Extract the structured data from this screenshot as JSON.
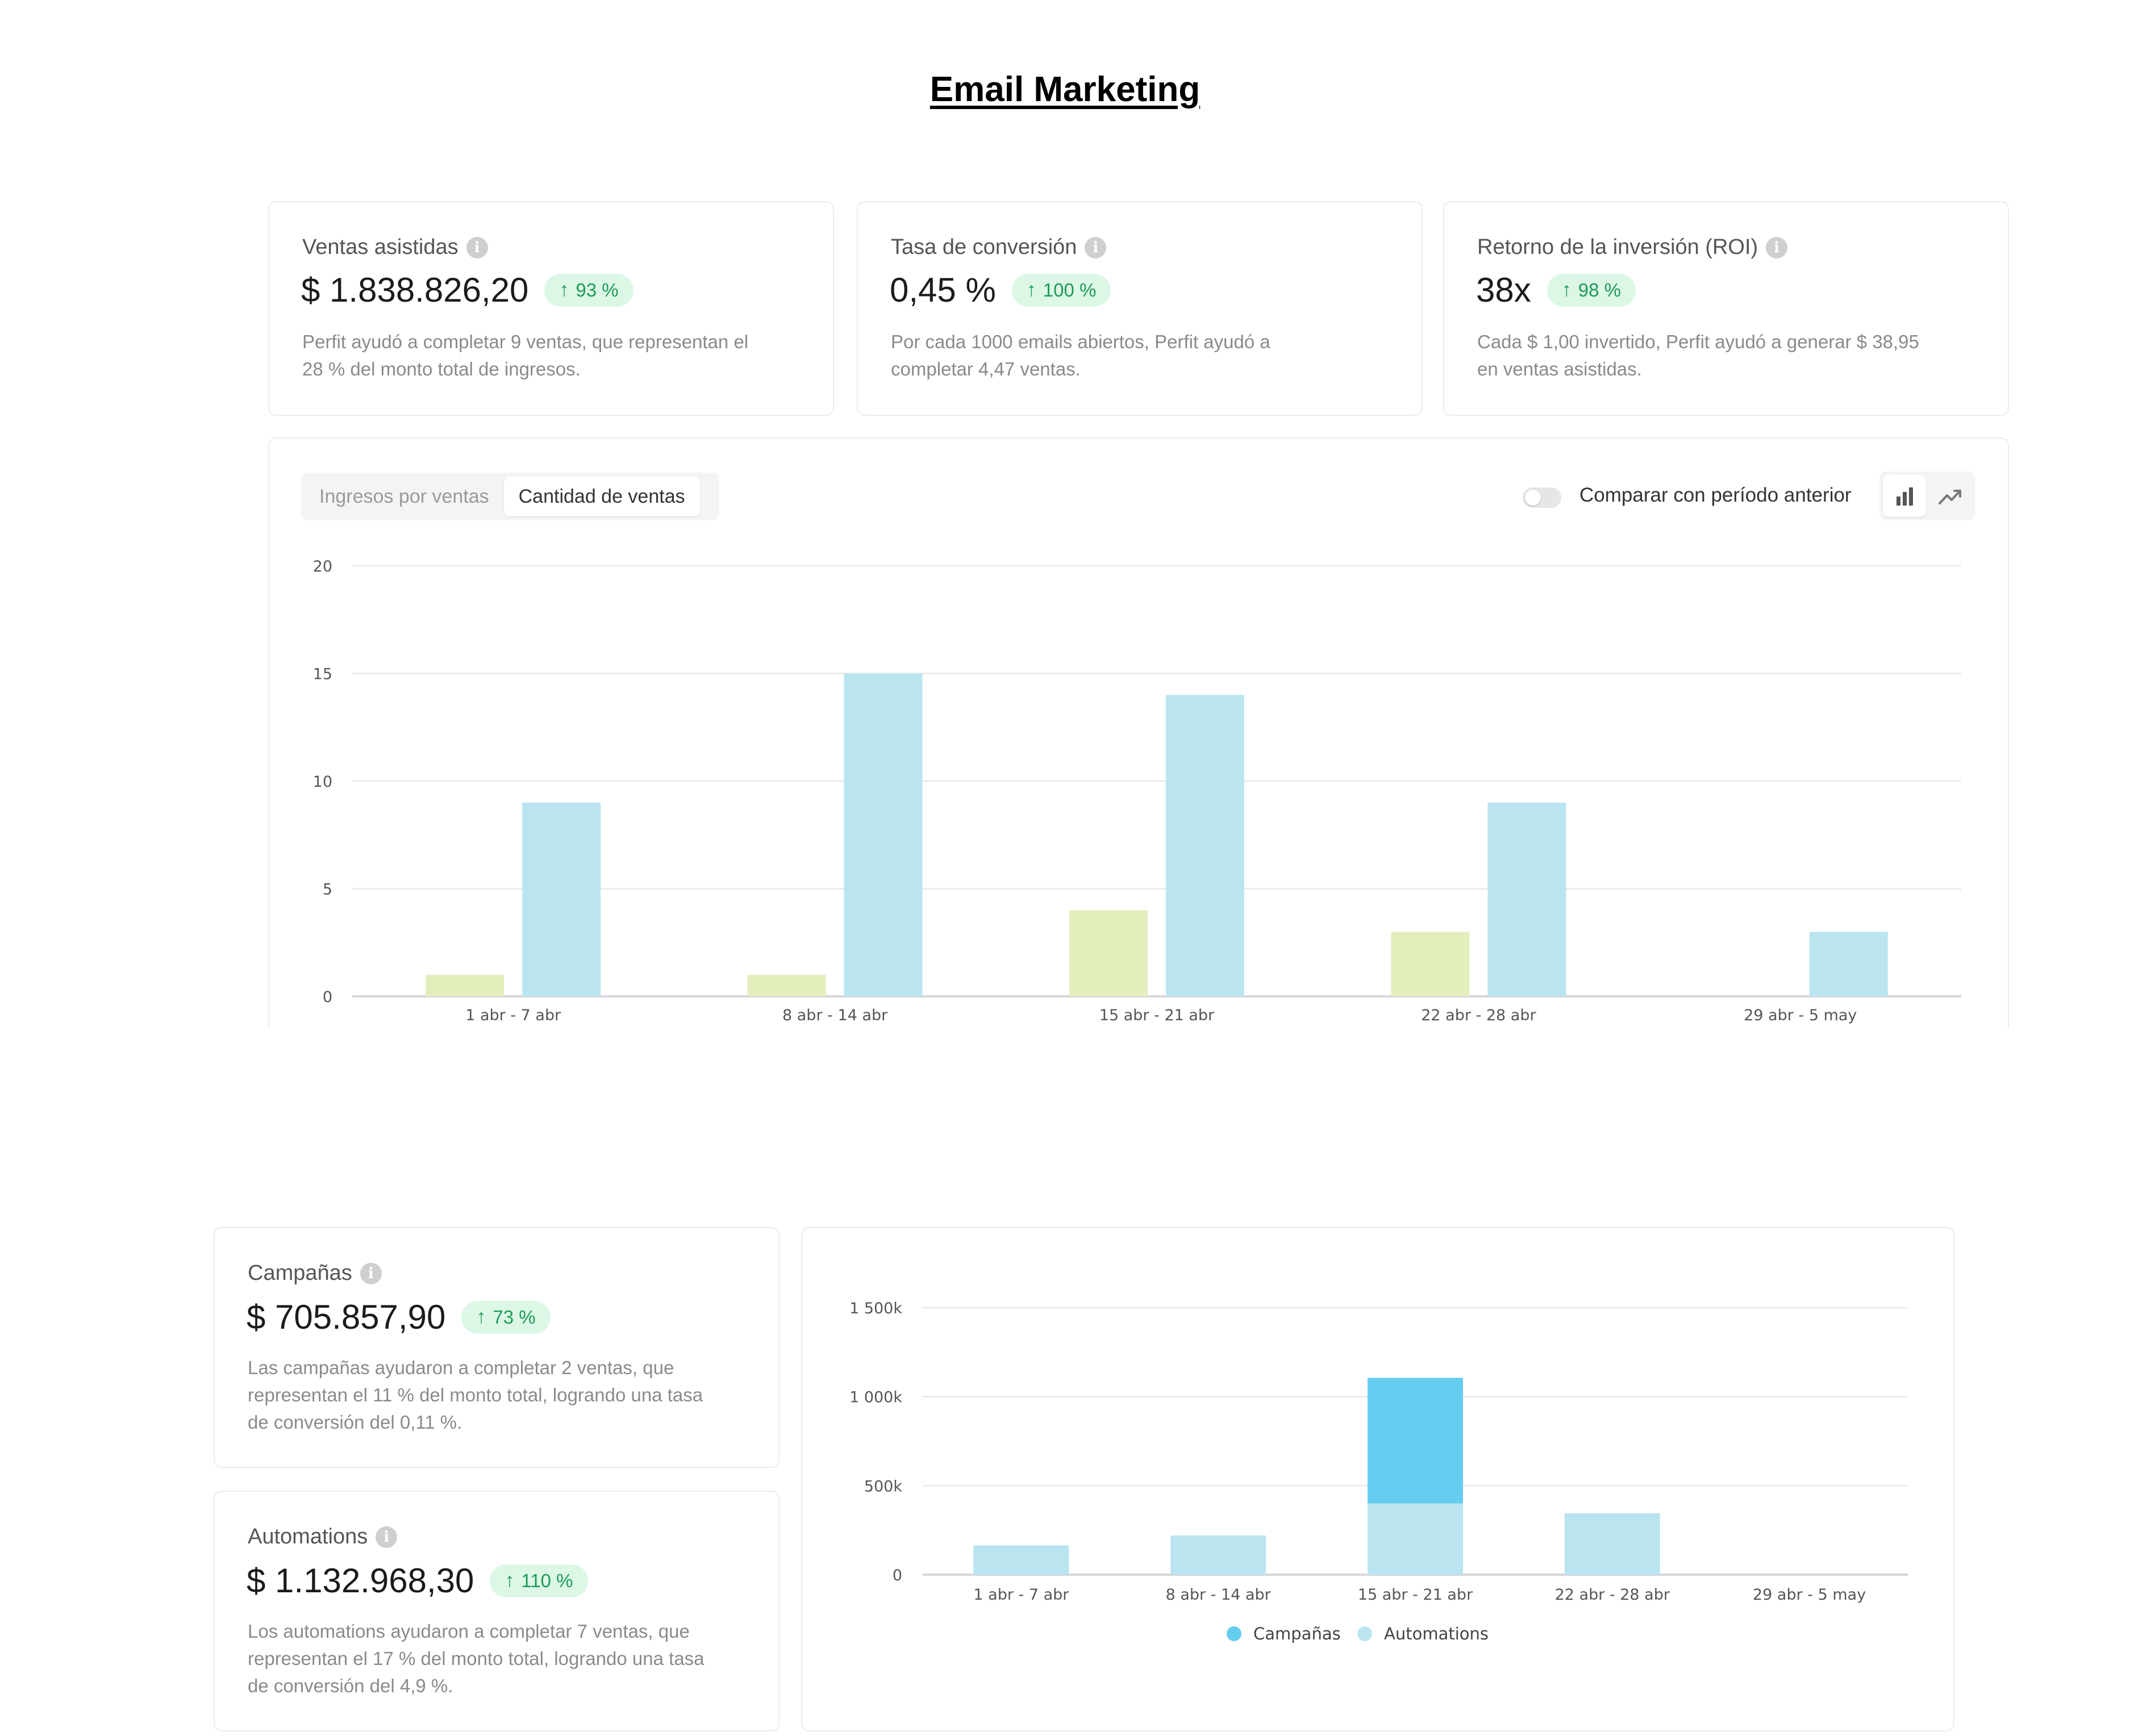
{
  "page": {
    "title": "Email Marketing"
  },
  "kpis": [
    {
      "label": "Ventas asistidas",
      "value": "$ 1.838.826,20",
      "change": "93 %",
      "desc1": "Perfit ayudó a completar 9 ventas, que representan el",
      "desc2": "28 % del monto total de ingresos."
    },
    {
      "label": "Tasa de conversión",
      "value": "0,45 %",
      "change": "100 %",
      "desc1": "Por cada 1000 emails abiertos, Perfit ayudó a",
      "desc2": "completar 4,47 ventas."
    },
    {
      "label": "Retorno de la inversión (ROI)",
      "value": "38x",
      "change": "98 %",
      "desc1": "Cada $ 1,00 invertido, Perfit ayudó a generar $ 38,95",
      "desc2": "en ventas asistidas."
    }
  ],
  "sales_chart": {
    "tabs": [
      "Ingresos por ventas",
      "Cantidad de ventas"
    ],
    "active_tab": "Cantidad de ventas",
    "compare_label": "Comparar con período anterior",
    "compare_enabled": false,
    "view_icons": [
      "bar-chart-icon",
      "trend-line-icon"
    ]
  },
  "breakdown": [
    {
      "label": "Campañas",
      "value": "$ 705.857,90",
      "change": "73 %",
      "desc1": "Las campañas ayudaron a completar 2 ventas, que",
      "desc2": "representan el 11 % del monto total, logrando una tasa",
      "desc3": "de conversión del 0,11 %."
    },
    {
      "label": "Automations",
      "value": "$ 1.132.968,30",
      "change": "110 %",
      "desc1": "Los automations ayudaron a completar 7 ventas, que",
      "desc2": "representan el 17 % del monto total, logrando una tasa",
      "desc3": "de conversión del 4,9 %."
    }
  ],
  "chart_data": [
    {
      "type": "bar",
      "categories": [
        "1 abr - 7 abr",
        "8 abr - 14 abr",
        "15 abr - 21 abr",
        "22 abr - 28 abr",
        "29 abr - 5 may"
      ],
      "series": [
        {
          "values": [
            1,
            1,
            4,
            3,
            0
          ],
          "color": "#e2efbd"
        },
        {
          "values": [
            9,
            15,
            14,
            9,
            3
          ],
          "color": "#bae5f0"
        }
      ],
      "yticks": [
        0,
        5,
        10,
        15,
        20
      ],
      "ylim": [
        0,
        20
      ],
      "grid": true,
      "legend": "none"
    },
    {
      "type": "bar",
      "stacked": true,
      "categories": [
        "1 abr - 7 abr",
        "8 abr - 14 abr",
        "15 abr - 21 abr",
        "22 abr - 28 abr",
        "29 abr - 5 may"
      ],
      "series": [
        {
          "name": "Automations",
          "values": [
            165000,
            220000,
            400000,
            345000,
            0
          ],
          "color": "#bae5f0"
        },
        {
          "name": "Campañas",
          "values": [
            0,
            0,
            705857.9,
            0,
            0
          ],
          "color": "#65cdf0"
        }
      ],
      "yticks": [
        "0",
        "500k",
        "1 000k",
        "1 500k"
      ],
      "ylim": [
        0,
        1500000
      ],
      "grid": true,
      "legend": "bottom-center",
      "legend_items": [
        {
          "name": "Campañas",
          "color": "#65cdf0"
        },
        {
          "name": "Automations",
          "color": "#bae5f0"
        }
      ]
    }
  ]
}
